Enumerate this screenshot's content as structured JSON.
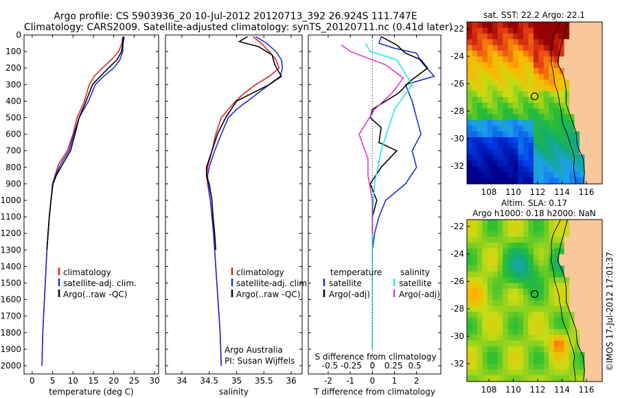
{
  "header": {
    "title_line1": "Argo profile: CS 5903936_20 10-Jul-2012 20120713_392 26.924S 111.747E",
    "title_line2": "Climatology: CARS2009. Satellite-adjusted climatology: synTS_20120711.nc (0.41d later)"
  },
  "colors": {
    "climatology": "#e02020",
    "satellite": "#1c2bd9",
    "argo": "#000000",
    "sal_sat": "#22e6e6",
    "sal_argo": "#e030e0",
    "land": "#f8c89a"
  },
  "chart_data": [
    {
      "id": "temperature",
      "type": "line",
      "xlabel": "temperature (deg C)",
      "xlim": [
        -2,
        31
      ],
      "xticks": [
        0,
        5,
        10,
        15,
        20,
        25,
        30
      ],
      "ylim": [
        0,
        2050
      ],
      "yticks": [
        0,
        100,
        200,
        300,
        400,
        500,
        600,
        700,
        800,
        900,
        1000,
        1100,
        1200,
        1300,
        1400,
        1500,
        1600,
        1700,
        1800,
        1900,
        2000
      ],
      "legend": [
        "climatology",
        "satellite-adj. clim.",
        "Argo(..raw -QC)"
      ],
      "series": [
        {
          "name": "climatology",
          "color": "#e02020",
          "points": [
            [
              22.2,
              10
            ],
            [
              22.0,
              50
            ],
            [
              21.2,
              100
            ],
            [
              19.4,
              150
            ],
            [
              17.2,
              200
            ],
            [
              15.2,
              250
            ],
            [
              14.0,
              300
            ],
            [
              12.8,
              400
            ],
            [
              11.0,
              500
            ],
            [
              10.0,
              600
            ],
            [
              8.6,
              700
            ],
            [
              6.5,
              780
            ],
            [
              5.6,
              850
            ],
            [
              5.0,
              900
            ],
            [
              4.6,
              1000
            ],
            [
              4.2,
              1100
            ],
            [
              3.9,
              1200
            ],
            [
              3.6,
              1300
            ],
            [
              3.4,
              1400
            ],
            [
              3.2,
              1500
            ],
            [
              3.0,
              1600
            ],
            [
              2.8,
              1700
            ],
            [
              2.6,
              1800
            ],
            [
              2.5,
              1900
            ],
            [
              2.4,
              2000
            ]
          ]
        },
        {
          "name": "satellite-adj. clim.",
          "color": "#1c2bd9",
          "points": [
            [
              22.6,
              10
            ],
            [
              22.3,
              50
            ],
            [
              22.2,
              100
            ],
            [
              21.5,
              150
            ],
            [
              20.0,
              200
            ],
            [
              17.5,
              250
            ],
            [
              15.5,
              300
            ],
            [
              13.8,
              400
            ],
            [
              11.5,
              500
            ],
            [
              10.2,
              600
            ],
            [
              9.0,
              700
            ],
            [
              7.0,
              780
            ],
            [
              5.7,
              850
            ],
            [
              5.0,
              900
            ],
            [
              4.6,
              1000
            ],
            [
              4.2,
              1100
            ],
            [
              3.9,
              1200
            ],
            [
              3.6,
              1300
            ],
            [
              3.4,
              1400
            ],
            [
              3.2,
              1500
            ],
            [
              3.0,
              1600
            ],
            [
              2.8,
              1700
            ],
            [
              2.6,
              1800
            ],
            [
              2.5,
              1900
            ],
            [
              2.4,
              2000
            ]
          ]
        },
        {
          "name": "Argo(..raw -QC)",
          "color": "#000000",
          "points": [
            [
              22.3,
              10
            ],
            [
              22.2,
              50
            ],
            [
              21.9,
              100
            ],
            [
              20.8,
              150
            ],
            [
              18.7,
              200
            ],
            [
              16.7,
              250
            ],
            [
              14.8,
              300
            ],
            [
              13.2,
              400
            ],
            [
              11.5,
              500
            ],
            [
              10.5,
              600
            ],
            [
              9.4,
              700
            ],
            [
              7.5,
              780
            ],
            [
              5.9,
              850
            ],
            [
              5.1,
              900
            ],
            [
              4.6,
              1000
            ],
            [
              4.2,
              1100
            ],
            [
              3.9,
              1200
            ],
            [
              3.6,
              1300
            ]
          ]
        }
      ]
    },
    {
      "id": "salinity",
      "type": "line",
      "xlabel": "salinity",
      "xlim": [
        33.7,
        36.2
      ],
      "xticks": [
        34,
        34.5,
        35,
        35.5,
        36
      ],
      "ylim": [
        0,
        2050
      ],
      "legend": [
        "climatology",
        "satellite-adj. clim.",
        "Argo(..raw -QC)"
      ],
      "annotation": [
        "Argo Australia",
        "PI: Susan Wijffels"
      ],
      "series": [
        {
          "name": "climatology",
          "color": "#e02020",
          "points": [
            [
              35.3,
              10
            ],
            [
              35.45,
              50
            ],
            [
              35.6,
              100
            ],
            [
              35.72,
              150
            ],
            [
              35.78,
              200
            ],
            [
              35.6,
              250
            ],
            [
              35.35,
              300
            ],
            [
              35.15,
              350
            ],
            [
              34.98,
              400
            ],
            [
              34.85,
              450
            ],
            [
              34.72,
              500
            ],
            [
              34.62,
              600
            ],
            [
              34.55,
              700
            ],
            [
              34.47,
              800
            ],
            [
              34.45,
              850
            ],
            [
              34.47,
              900
            ],
            [
              34.52,
              1000
            ],
            [
              34.55,
              1100
            ],
            [
              34.58,
              1200
            ],
            [
              34.6,
              1300
            ],
            [
              34.62,
              1400
            ],
            [
              34.64,
              1500
            ],
            [
              34.66,
              1600
            ],
            [
              34.68,
              1700
            ],
            [
              34.7,
              1800
            ],
            [
              34.71,
              1900
            ],
            [
              34.72,
              2000
            ]
          ]
        },
        {
          "name": "satellite-adj. clim.",
          "color": "#1c2bd9",
          "points": [
            [
              35.35,
              10
            ],
            [
              35.55,
              50
            ],
            [
              35.72,
              100
            ],
            [
              35.82,
              150
            ],
            [
              35.84,
              200
            ],
            [
              35.8,
              250
            ],
            [
              35.6,
              300
            ],
            [
              35.4,
              350
            ],
            [
              35.2,
              400
            ],
            [
              35.0,
              450
            ],
            [
              34.85,
              500
            ],
            [
              34.72,
              600
            ],
            [
              34.6,
              700
            ],
            [
              34.5,
              800
            ],
            [
              34.47,
              850
            ],
            [
              34.48,
              900
            ],
            [
              34.52,
              1000
            ],
            [
              34.55,
              1100
            ],
            [
              34.58,
              1200
            ],
            [
              34.6,
              1300
            ],
            [
              34.62,
              1400
            ],
            [
              34.64,
              1500
            ],
            [
              34.66,
              1600
            ],
            [
              34.68,
              1700
            ],
            [
              34.7,
              1800
            ],
            [
              34.71,
              1900
            ],
            [
              34.72,
              2000
            ]
          ]
        },
        {
          "name": "Argo(..raw -QC)",
          "color": "#000000",
          "points": [
            [
              35.2,
              10
            ],
            [
              35.05,
              40
            ],
            [
              35.4,
              70
            ],
            [
              35.65,
              120
            ],
            [
              35.7,
              180
            ],
            [
              35.82,
              250
            ],
            [
              35.6,
              300
            ],
            [
              35.3,
              350
            ],
            [
              35.0,
              400
            ],
            [
              34.8,
              500
            ],
            [
              34.65,
              600
            ],
            [
              34.55,
              700
            ],
            [
              34.45,
              800
            ],
            [
              34.45,
              850
            ],
            [
              34.5,
              900
            ],
            [
              34.55,
              1000
            ],
            [
              34.57,
              1100
            ],
            [
              34.6,
              1200
            ],
            [
              34.62,
              1300
            ]
          ]
        }
      ]
    },
    {
      "id": "difference",
      "type": "line",
      "xlabel": "T difference from climatology",
      "xlabel_top": "S difference from climatology",
      "xlim": [
        -2.9,
        3.1
      ],
      "xticks": [
        -2,
        -1,
        0,
        1,
        2
      ],
      "xticks_top": [
        "-0.5",
        "-0.25",
        "0",
        "0.25",
        "0.5"
      ],
      "ylim": [
        0,
        2050
      ],
      "legend_left": [
        "temperature",
        "satellite",
        "Argo(-adj)"
      ],
      "legend_right": [
        "salinity",
        "satellite",
        "Argo(-adj)"
      ],
      "series": [
        {
          "name": "temperature satellite",
          "color": "#1c2bd9",
          "points": [
            [
              0.4,
              10
            ],
            [
              0.3,
              50
            ],
            [
              1.0,
              80
            ],
            [
              2.0,
              110
            ],
            [
              2.2,
              160
            ],
            [
              2.8,
              250
            ],
            [
              1.5,
              300
            ],
            [
              1.8,
              400
            ],
            [
              2.2,
              600
            ],
            [
              1.8,
              700
            ],
            [
              2.0,
              800
            ],
            [
              1.5,
              900
            ],
            [
              0.6,
              1000
            ],
            [
              0.3,
              1100
            ],
            [
              0.1,
              1200
            ],
            [
              0,
              1300
            ],
            [
              0,
              1400
            ]
          ]
        },
        {
          "name": "temperature Argo(-adj)",
          "color": "#000000",
          "points": [
            [
              0.4,
              10
            ],
            [
              1.1,
              60
            ],
            [
              1.5,
              110
            ],
            [
              2.2,
              150
            ],
            [
              2.5,
              200
            ],
            [
              1.7,
              280
            ],
            [
              1.2,
              350
            ],
            [
              0,
              450
            ],
            [
              -0.1,
              500
            ],
            [
              0.4,
              560
            ],
            [
              0.3,
              650
            ],
            [
              1.1,
              700
            ],
            [
              0.4,
              800
            ],
            [
              -0.1,
              900
            ],
            [
              0.2,
              1000
            ],
            [
              0,
              1100
            ],
            [
              0,
              1200
            ],
            [
              0,
              1300
            ]
          ]
        },
        {
          "name": "salinity satellite",
          "color": "#22e6e6",
          "points": [
            [
              -0.3,
              50
            ],
            [
              -0.1,
              100
            ],
            [
              1.1,
              150
            ],
            [
              1.8,
              300
            ],
            [
              1.0,
              450
            ],
            [
              0.4,
              700
            ],
            [
              0.1,
              900
            ],
            [
              0,
              1100
            ],
            [
              0,
              1500
            ],
            [
              0,
              1900
            ]
          ]
        },
        {
          "name": "salinity Argo(-adj)",
          "color": "#e030e0",
          "points": [
            [
              -1.4,
              60
            ],
            [
              -1.0,
              100
            ],
            [
              0.6,
              180
            ],
            [
              1.4,
              260
            ],
            [
              0.9,
              350
            ],
            [
              0.1,
              450
            ],
            [
              -0.6,
              600
            ],
            [
              -0.2,
              750
            ],
            [
              -0.2,
              850
            ],
            [
              0,
              1000
            ],
            [
              0,
              1200
            ]
          ]
        }
      ]
    },
    {
      "id": "sst_map",
      "type": "heatmap",
      "title": "sat. SST: 22.2 Argo: 22.1",
      "xlim": [
        106.2,
        117.3
      ],
      "ylim": [
        -33.3,
        -21.5
      ],
      "xticks": [
        108,
        110,
        112,
        114,
        116
      ],
      "yticks": [
        -22,
        -24,
        -26,
        -28,
        -30,
        -32
      ],
      "marker": [
        111.75,
        -26.92
      ]
    },
    {
      "id": "sla_map",
      "type": "heatmap",
      "title_line1": "Altim. SLA: 0.17",
      "title_line2": "Argo h1000: 0.18 h2000: NaN",
      "xlim": [
        106.2,
        117.3
      ],
      "ylim": [
        -33.3,
        -21.5
      ],
      "xticks": [
        108,
        110,
        112,
        114,
        116
      ],
      "yticks": [
        -22,
        -24,
        -26,
        -28,
        -30,
        -32
      ],
      "marker": [
        111.75,
        -26.92
      ]
    }
  ],
  "footer": {
    "side_note": "©IMOS 17-Jul-2012 17:01:37"
  }
}
